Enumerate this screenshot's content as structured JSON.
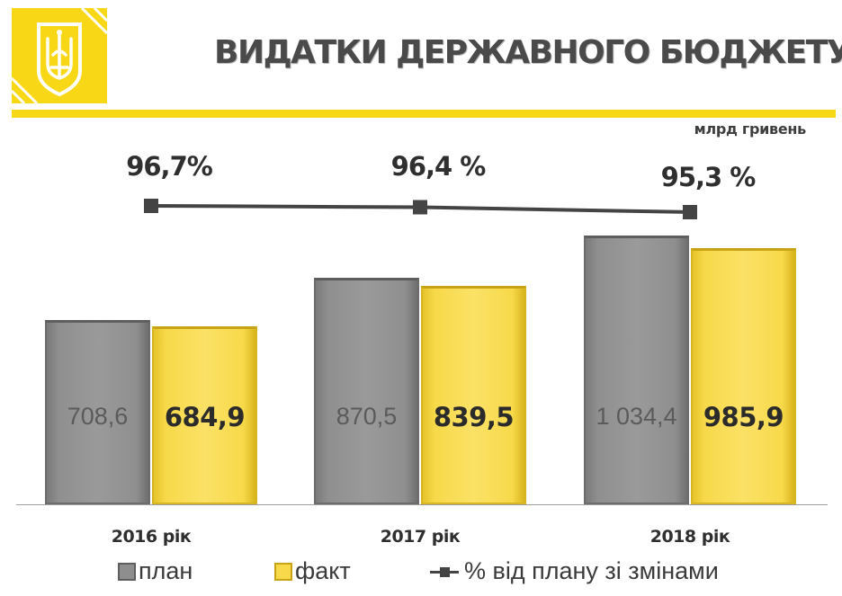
{
  "header": {
    "title": "ВИДАТКИ ДЕРЖАВНОГО БЮДЖЕТУ",
    "unit": "млрд гривень",
    "logo_icon": "trident-coat-of-arms-icon"
  },
  "colors": {
    "accent": "#f8d816",
    "plan": "#8e8e8e",
    "fact": "#f7d94a",
    "line": "#444444"
  },
  "chart_data": {
    "type": "bar",
    "categories": [
      "2016 рік",
      "2017 рік",
      "2018 рік"
    ],
    "series": [
      {
        "name": "план",
        "values": [
          708.6,
          870.5,
          1034.4
        ],
        "labels": [
          "708,6",
          "870,5",
          "1 034,4"
        ]
      },
      {
        "name": "факт",
        "values": [
          684.9,
          839.5,
          985.9
        ],
        "labels": [
          "684,9",
          "839,5",
          "985,9"
        ]
      }
    ],
    "line_series": {
      "name": "% від плану зі змінами",
      "values": [
        96.7,
        96.4,
        95.3
      ],
      "labels": [
        "96,7%",
        "96,4 %",
        "95,3 %"
      ]
    },
    "ylim": [
      0,
      1100
    ],
    "grid": false,
    "legend_position": "bottom",
    "legend": [
      "план",
      "факт",
      "% від плану зі змінами"
    ]
  }
}
